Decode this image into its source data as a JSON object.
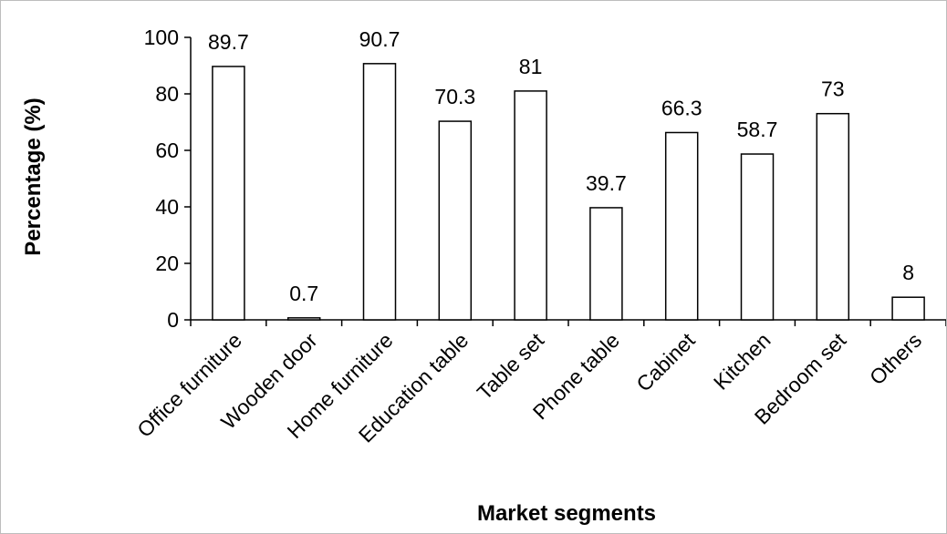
{
  "chart_data": {
    "type": "bar",
    "title": "",
    "xlabel": "Market segments",
    "ylabel": "Percentage (%)",
    "ylim": [
      0,
      100
    ],
    "yticks": [
      0,
      20,
      40,
      60,
      80,
      100
    ],
    "categories": [
      "Office furniture",
      "Wooden door",
      "Home furniture",
      "Education table",
      "Table set",
      "Phone table",
      "Cabinet",
      "Kitchen",
      "Bedroom set",
      "Others"
    ],
    "values": [
      89.7,
      0.7,
      90.7,
      70.3,
      81,
      39.7,
      66.3,
      58.7,
      73,
      8
    ],
    "value_labels": [
      "89.7",
      "0.7",
      "90.7",
      "70.3",
      "81",
      "39.7",
      "66.3",
      "58.7",
      "73",
      "8"
    ],
    "bar_fill": "#ffffff",
    "bar_stroke": "#000000",
    "grid": false,
    "legend": "none"
  }
}
